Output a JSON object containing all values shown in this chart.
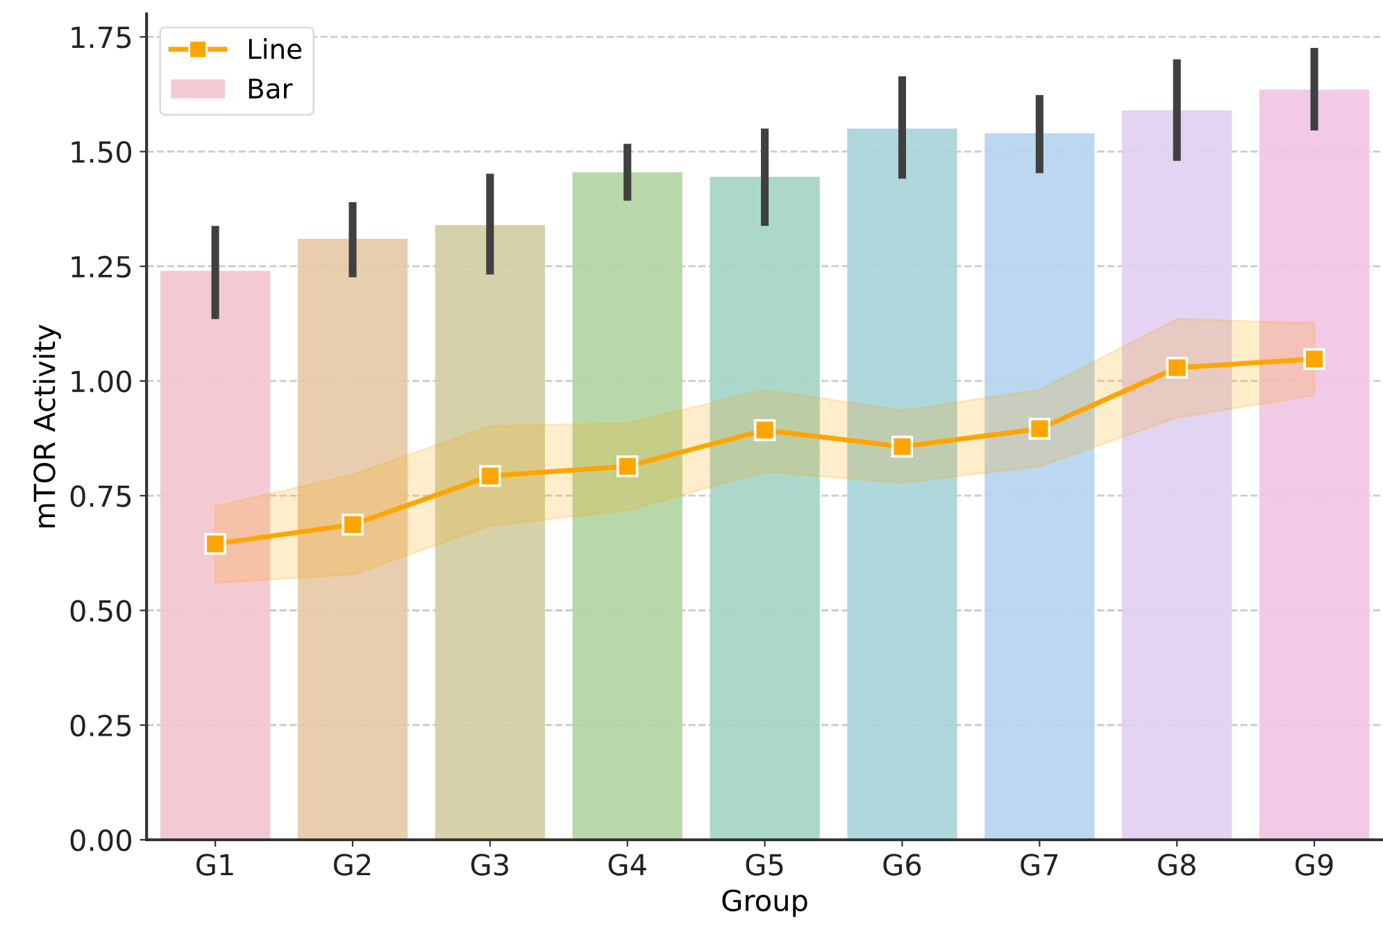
{
  "chart_data": {
    "type": "bar",
    "xlabel": "Group",
    "ylabel": "mTOR Activity",
    "categories": [
      "G1",
      "G2",
      "G3",
      "G4",
      "G5",
      "G6",
      "G7",
      "G8",
      "G9"
    ],
    "ylim": [
      0,
      1.8
    ],
    "yticks": [
      {
        "value": 0,
        "label": "0.00"
      },
      {
        "value": 0.25,
        "label": "0.25"
      },
      {
        "value": 0.5,
        "label": "0.50"
      },
      {
        "value": 0.75,
        "label": "0.75"
      },
      {
        "value": 1.0,
        "label": "1.00"
      },
      {
        "value": 1.25,
        "label": "1.25"
      },
      {
        "value": 1.5,
        "label": "1.50"
      },
      {
        "value": 1.75,
        "label": "1.75"
      }
    ],
    "grid": "y",
    "legend": "top left",
    "series": [
      {
        "type": "line",
        "name": "Line",
        "color": "#ffa500",
        "marker": "square",
        "line_style": "solid",
        "values": [
          0.645,
          0.687,
          0.793,
          0.814,
          0.893,
          0.857,
          0.896,
          1.029,
          1.048
        ],
        "lower": [
          0.56,
          0.578,
          0.684,
          0.718,
          0.802,
          0.778,
          0.814,
          0.92,
          0.969
        ],
        "upper": [
          0.727,
          0.796,
          0.902,
          0.908,
          0.981,
          0.936,
          0.981,
          1.135,
          1.126
        ]
      },
      {
        "name": "Bar",
        "colors": [
          "#f2c4cd",
          "#e5c9a5",
          "#d0cda0",
          "#b0d4a0",
          "#a3d4c6",
          "#a5d4d8",
          "#b4d4ee",
          "#dfcff1",
          "#f1c4e4"
        ],
        "values": [
          1.24,
          1.31,
          1.34,
          1.455,
          1.445,
          1.55,
          1.54,
          1.59,
          1.635
        ],
        "errors": [
          [
            1.135,
            1.338
          ],
          [
            1.226,
            1.39
          ],
          [
            1.232,
            1.452
          ],
          [
            1.393,
            1.517
          ],
          [
            1.338,
            1.55
          ],
          [
            1.441,
            1.664
          ],
          [
            1.453,
            1.623
          ],
          [
            1.48,
            1.701
          ],
          [
            1.546,
            1.726
          ]
        ]
      }
    ]
  }
}
